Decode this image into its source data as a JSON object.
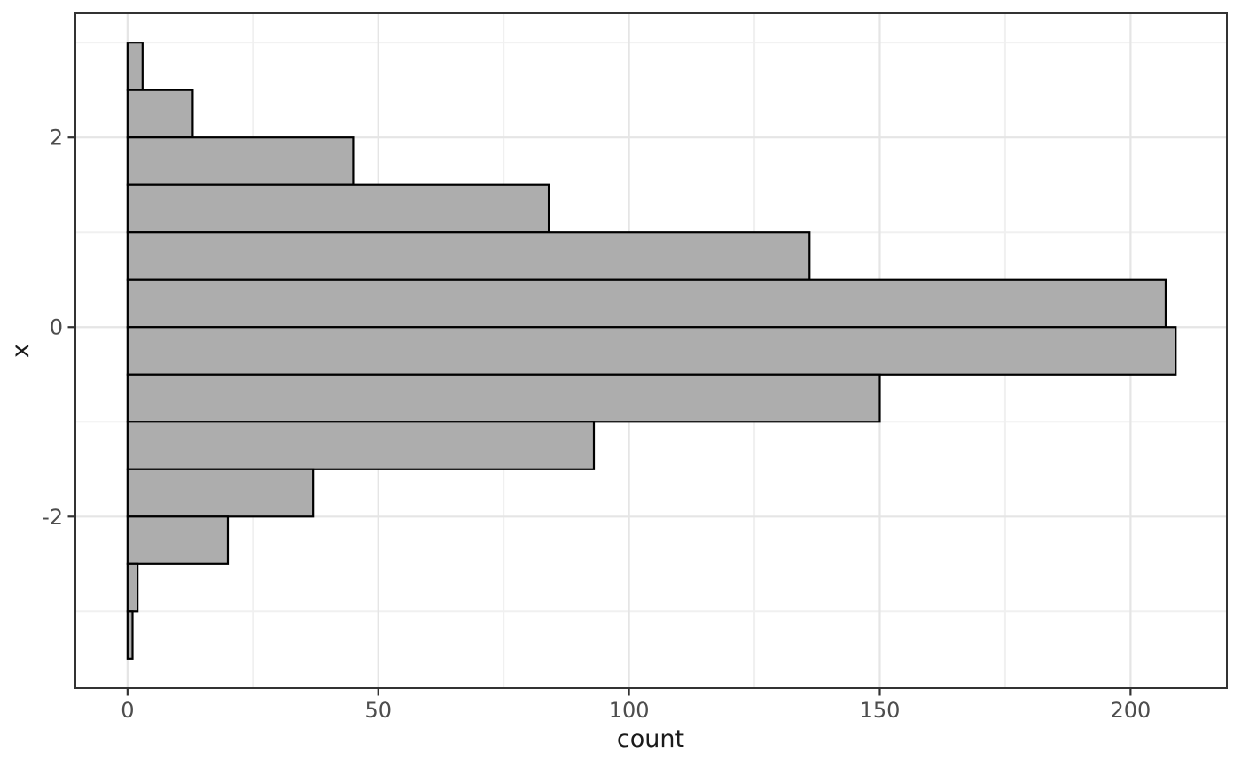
{
  "figure": {
    "background": "#ffffff"
  },
  "chart_data": {
    "type": "bar",
    "variant": "histogram-horizontal",
    "title": "",
    "xlabel": "count",
    "ylabel": "x",
    "x_ticks": [
      0,
      50,
      100,
      150,
      200
    ],
    "x_minor_ticks": [
      25,
      75,
      125,
      175
    ],
    "y_ticks": [
      -2,
      0,
      2
    ],
    "y_minor_ticks": [
      -3,
      -1,
      1,
      3
    ],
    "xlim": [
      -10.4,
      219.2
    ],
    "ylim": [
      -3.81,
      3.31
    ],
    "binwidth": 0.5,
    "bins": [
      {
        "from": 2.5,
        "to": 3.0,
        "count": 3
      },
      {
        "from": 2.0,
        "to": 2.5,
        "count": 13
      },
      {
        "from": 1.5,
        "to": 2.0,
        "count": 45
      },
      {
        "from": 1.0,
        "to": 1.5,
        "count": 84
      },
      {
        "from": 0.5,
        "to": 1.0,
        "count": 136
      },
      {
        "from": 0.0,
        "to": 0.5,
        "count": 207
      },
      {
        "from": -0.5,
        "to": 0.0,
        "count": 209
      },
      {
        "from": -1.0,
        "to": -0.5,
        "count": 150
      },
      {
        "from": -1.5,
        "to": -1.0,
        "count": 93
      },
      {
        "from": -2.0,
        "to": -1.5,
        "count": 37
      },
      {
        "from": -2.5,
        "to": -2.0,
        "count": 20
      },
      {
        "from": -3.0,
        "to": -2.5,
        "count": 2
      },
      {
        "from": -3.5,
        "to": -3.0,
        "count": 1
      }
    ],
    "total_count": 1000,
    "legend_position": "none",
    "grid": "major+minor",
    "colors": {
      "bar_fill": "#adadad",
      "bar_stroke": "#000000",
      "panel_border": "#333333",
      "grid_major": "#e5e5e5",
      "grid_minor": "#f0f0f0",
      "tick_mark": "#333333",
      "tick_label": "#4d4d4d",
      "axis_title": "#1a1a1a",
      "panel_background": "#ffffff"
    }
  }
}
